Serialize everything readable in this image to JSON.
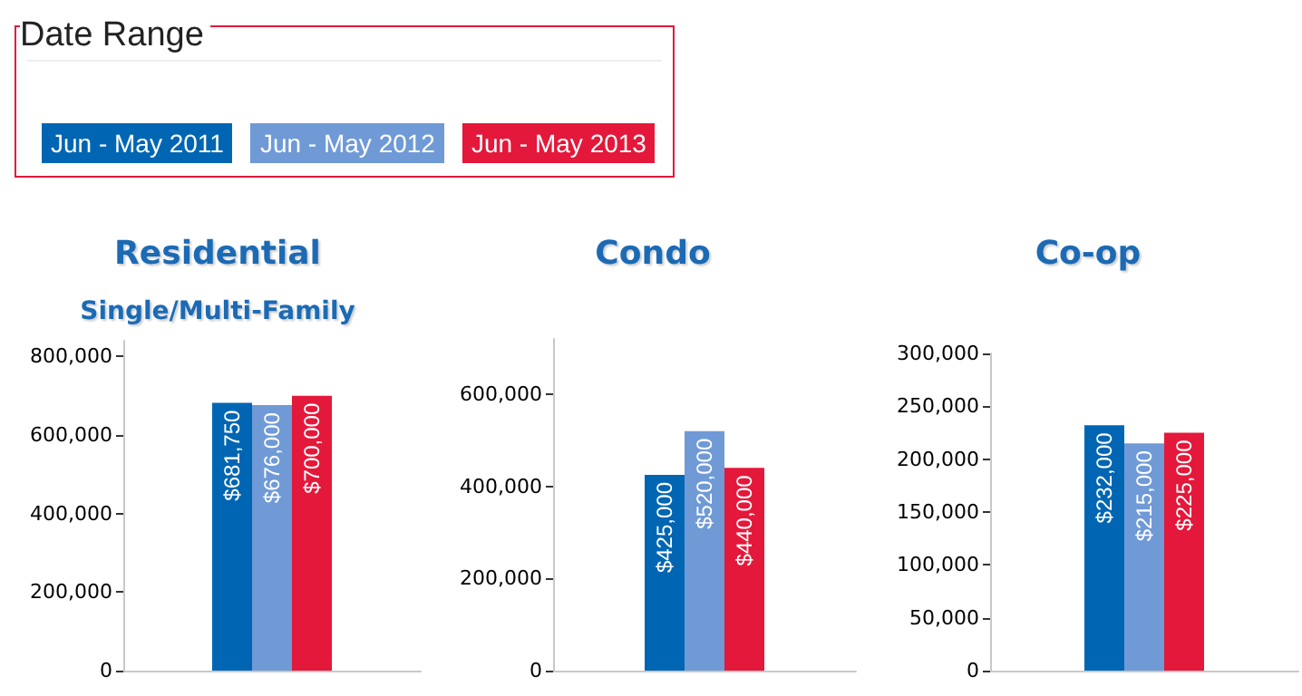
{
  "chart_data": [
    {
      "type": "bar",
      "title": "Residential",
      "subtitle": "Single/Multi-Family",
      "legend_title": "Date Range",
      "legend": "top",
      "categories": [
        null
      ],
      "ylim": [
        0,
        840000
      ],
      "yticks": [
        {
          "value": 0,
          "label": "0"
        },
        {
          "value": 200000,
          "label": "200,000"
        },
        {
          "value": 400000,
          "label": "400,000"
        },
        {
          "value": 600000,
          "label": "600,000"
        },
        {
          "value": 800000,
          "label": "800,000"
        }
      ],
      "grid": false,
      "series": [
        {
          "name": "Jun - May 2011",
          "color": "#0066b3",
          "values": [
            681750
          ],
          "value_labels": [
            "$681,750"
          ]
        },
        {
          "name": "Jun - May 2012",
          "color": "#6f9ad6",
          "values": [
            676000
          ],
          "value_labels": [
            "$676,000"
          ]
        },
        {
          "name": "Jun - May 2013",
          "color": "#e4183a",
          "values": [
            700000
          ],
          "value_labels": [
            "$700,000"
          ]
        }
      ]
    },
    {
      "type": "bar",
      "title": "Condo",
      "categories": [
        null
      ],
      "ylim": [
        0,
        720000
      ],
      "yticks": [
        {
          "value": 0,
          "label": "0"
        },
        {
          "value": 200000,
          "label": "200,000"
        },
        {
          "value": 400000,
          "label": "400,000"
        },
        {
          "value": 600000,
          "label": "600,000"
        }
      ],
      "grid": false,
      "series": [
        {
          "color": "#0066b3",
          "values": [
            425000
          ],
          "value_labels": [
            "$425,000"
          ]
        },
        {
          "color": "#6f9ad6",
          "values": [
            520000
          ],
          "value_labels": [
            "$520,000"
          ]
        },
        {
          "color": "#e4183a",
          "values": [
            440000
          ],
          "value_labels": [
            "$440,000"
          ]
        }
      ]
    },
    {
      "type": "bar",
      "title": "Co-op",
      "categories": [
        null
      ],
      "ylim": [
        0,
        300000
      ],
      "yticks": [
        {
          "value": 0,
          "label": "0"
        },
        {
          "value": 50000,
          "label": "50,000"
        },
        {
          "value": 100000,
          "label": "100,000"
        },
        {
          "value": 150000,
          "label": "150,000"
        },
        {
          "value": 200000,
          "label": "200,000"
        },
        {
          "value": 250000,
          "label": "250,000"
        },
        {
          "value": 300000,
          "label": "300,000"
        }
      ],
      "grid": false,
      "series": [
        {
          "color": "#0066b3",
          "values": [
            232000
          ],
          "value_labels": [
            "$232,000"
          ]
        },
        {
          "color": "#6f9ad6",
          "values": [
            215000
          ],
          "value_labels": [
            "$215,000"
          ]
        },
        {
          "color": "#e4183a",
          "values": [
            225000
          ],
          "value_labels": [
            "$225,000"
          ]
        }
      ]
    }
  ]
}
